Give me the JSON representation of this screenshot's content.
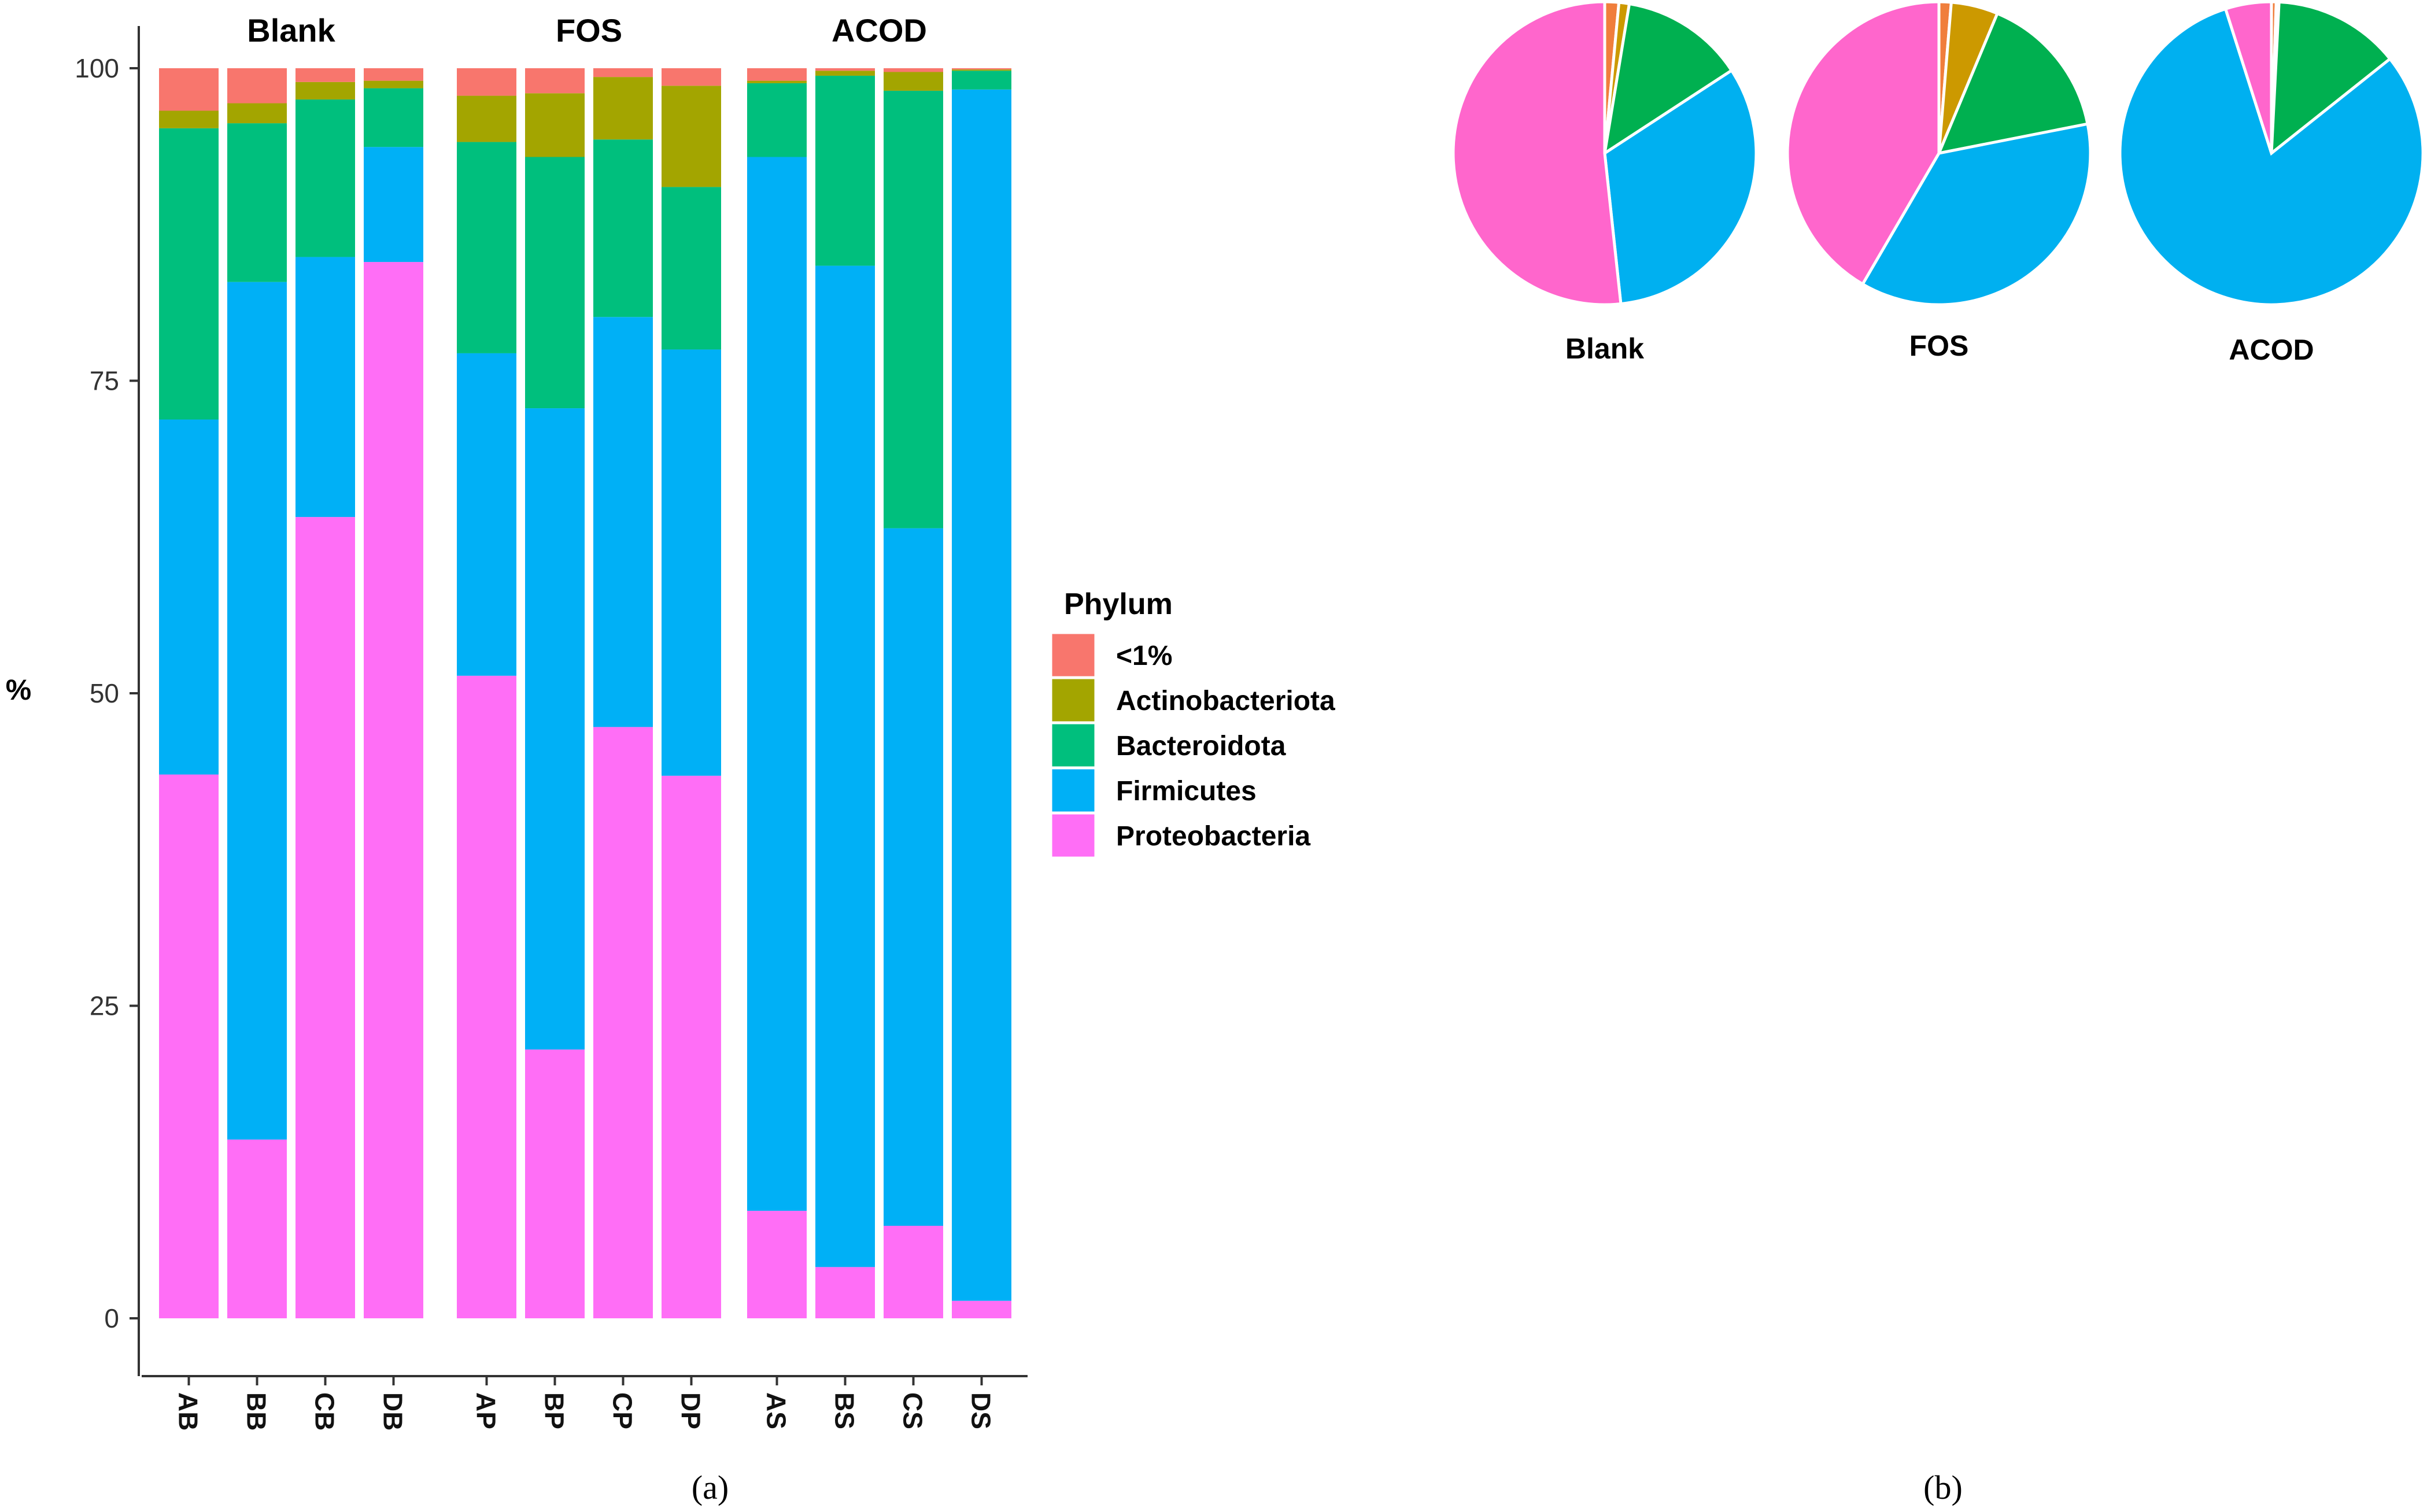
{
  "figure": {
    "panel_a_label": "(a)",
    "panel_b_label": "(b)"
  },
  "colors": {
    "<1%": "#F8766D",
    "Actinobacteriota": "#A3A500",
    "Bacteroidota": "#00BF7D",
    "Firmicutes": "#00B0F6",
    "Proteobacteria": "#FF6EF6"
  },
  "pie_colors": {
    "Proteobacteria": "#FF66CC",
    "Firmicutes": "#00B0F0",
    "Bacteroidota": "#00B050",
    "Actinobacteriota": "#CC9900",
    "<1%": "#F07E3C"
  },
  "chart_data": [
    {
      "type": "bar",
      "subtype": "stacked-faceted",
      "title": "",
      "xlabel": "",
      "ylabel": "%",
      "ylim": [
        0,
        100
      ],
      "yticks": [
        0,
        25,
        50,
        75,
        100
      ],
      "legend": {
        "title": "Phylum",
        "placement": "right"
      },
      "stack_order": [
        "Proteobacteria",
        "Firmicutes",
        "Bacteroidota",
        "Actinobacteriota",
        "<1%"
      ],
      "legend_order": [
        "<1%",
        "Actinobacteriota",
        "Bacteroidota",
        "Firmicutes",
        "Proteobacteria"
      ],
      "facets": [
        {
          "name": "Blank",
          "categories": [
            "AB",
            "BB",
            "CB",
            "DB"
          ],
          "series": [
            {
              "name": "Proteobacteria",
              "values": [
                43.5,
                14.3,
                64.1,
                84.5
              ]
            },
            {
              "name": "Firmicutes",
              "values": [
                28.4,
                68.6,
                20.8,
                9.2
              ]
            },
            {
              "name": "Bacteroidota",
              "values": [
                23.3,
                12.7,
                12.6,
                4.7
              ]
            },
            {
              "name": "Actinobacteriota",
              "values": [
                1.4,
                1.6,
                1.4,
                0.6
              ]
            },
            {
              "name": "<1%",
              "values": [
                3.4,
                2.8,
                1.1,
                1.0
              ]
            }
          ]
        },
        {
          "name": "FOS",
          "categories": [
            "AP",
            "BP",
            "CP",
            "DP"
          ],
          "series": [
            {
              "name": "Proteobacteria",
              "values": [
                51.4,
                21.5,
                47.3,
                43.4
              ]
            },
            {
              "name": "Firmicutes",
              "values": [
                25.8,
                51.3,
                32.8,
                34.1
              ]
            },
            {
              "name": "Bacteroidota",
              "values": [
                16.9,
                20.1,
                14.2,
                13.0
              ]
            },
            {
              "name": "Actinobacteriota",
              "values": [
                3.7,
                5.1,
                5.0,
                8.1
              ]
            },
            {
              "name": "<1%",
              "values": [
                2.2,
                2.0,
                0.7,
                1.4
              ]
            }
          ]
        },
        {
          "name": "ACOD",
          "categories": [
            "AS",
            "BS",
            "CS",
            "DS"
          ],
          "series": [
            {
              "name": "Proteobacteria",
              "values": [
                8.6,
                4.1,
                7.4,
                1.4
              ]
            },
            {
              "name": "Firmicutes",
              "values": [
                84.3,
                80.1,
                55.8,
                96.9
              ]
            },
            {
              "name": "Bacteroidota",
              "values": [
                5.9,
                15.2,
                35.0,
                1.5
              ]
            },
            {
              "name": "Actinobacteriota",
              "values": [
                0.2,
                0.4,
                1.5,
                0.1
              ]
            },
            {
              "name": "<1%",
              "values": [
                1.0,
                0.2,
                0.3,
                0.1
              ]
            }
          ]
        }
      ]
    },
    {
      "type": "pie",
      "name": "Blank",
      "categories": [
        "<1%",
        "Actinobacteriota",
        "Bacteroidota",
        "Firmicutes",
        "Proteobacteria"
      ],
      "values": [
        1.5,
        1.1,
        13.2,
        32.5,
        51.7
      ]
    },
    {
      "type": "pie",
      "name": "FOS",
      "categories": [
        "<1%",
        "Actinobacteriota",
        "Bacteroidota",
        "Firmicutes",
        "Proteobacteria"
      ],
      "values": [
        1.3,
        5.0,
        15.6,
        36.5,
        41.6
      ]
    },
    {
      "type": "pie",
      "name": "ACOD",
      "categories": [
        "<1%",
        "Actinobacteriota",
        "Bacteroidota",
        "Firmicutes",
        "Proteobacteria"
      ],
      "values": [
        0.5,
        0.3,
        13.5,
        80.8,
        4.9
      ]
    }
  ]
}
